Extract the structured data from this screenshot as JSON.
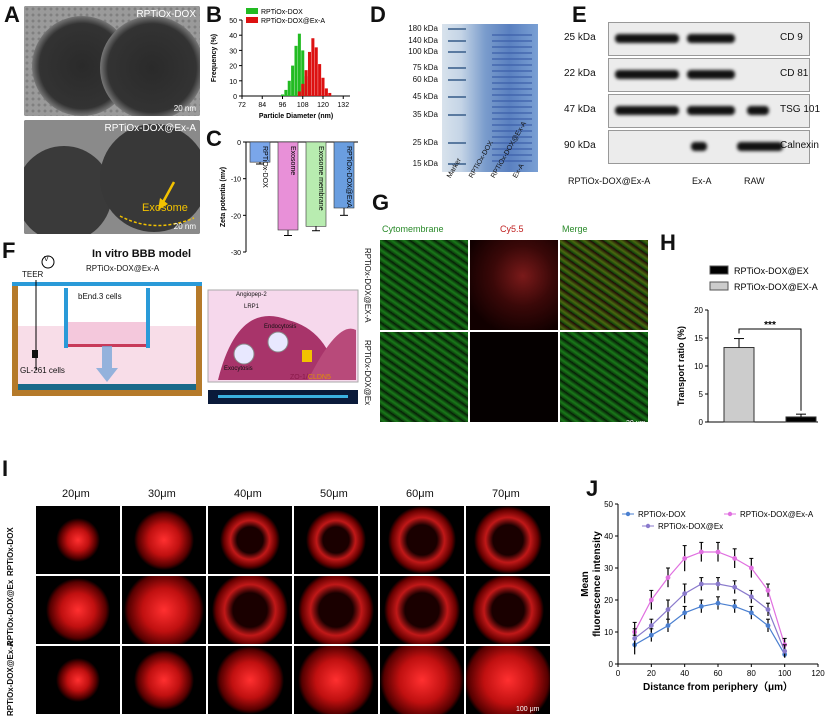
{
  "panels": {
    "A": {
      "letter": "A",
      "label_top": "RPTiOx-DOX",
      "label_bottom": "RPTiOx-DOX@Ex-A",
      "annotation": "Exosome",
      "scale_top": "20 nm",
      "scale_bottom": "20 nm"
    },
    "B": {
      "letter": "B"
    },
    "C": {
      "letter": "C"
    },
    "D": {
      "letter": "D",
      "mw_labels": [
        "180 kDa",
        "140 kDa",
        "100 kDa",
        "75 kDa",
        "60 kDa",
        "45 kDa",
        "35 kDa",
        "25 kDa",
        "15 kDa"
      ],
      "lanes": [
        "Marker",
        "RPTiOx-DOX",
        "RPTiOx-DOX@Ex-A",
        "Ex-A"
      ]
    },
    "E": {
      "letter": "E",
      "rows": [
        {
          "mw": "25 kDa",
          "protein": "CD 9"
        },
        {
          "mw": "22 kDa",
          "protein": "CD 81"
        },
        {
          "mw": "47 kDa",
          "protein": "TSG 101"
        },
        {
          "mw": "90 kDa",
          "protein": "Calnexin"
        }
      ],
      "lanes": [
        "RPTiOx-DOX@Ex-A",
        "Ex-A",
        "RAW"
      ]
    },
    "F": {
      "letter": "F",
      "title": "In vitro BBB model",
      "teer": "TEER",
      "v": "V",
      "sample": "RPTiOx-DOX@Ex-A",
      "bend": "bEnd.3 cells",
      "gl": "GL-261 cells",
      "angiopep": "Angiopep-2",
      "lrp1": "LRP1",
      "endocytosis": "Endocytosis",
      "exocytosis": "Exocytosis",
      "zo": "ZO-1/",
      "cldn": "CLDN5"
    },
    "G": {
      "letter": "G",
      "columns": [
        "Cytomembrane",
        "Cy5.5",
        "Merge"
      ],
      "rows": [
        "RPTiOx-DOX@EX-A",
        "RPTiOx-DOX@Ex"
      ],
      "scale": "20 μm"
    },
    "H": {
      "letter": "H",
      "significance": "***"
    },
    "I": {
      "letter": "I",
      "depths": [
        "20μm",
        "30μm",
        "40μm",
        "50μm",
        "60μm",
        "70μm"
      ],
      "rows": [
        "RPTiOx-DOX",
        "RPTiOx-DOX@Ex",
        "RPTiOx-DOX@Ex-A"
      ],
      "scale": "100 μm"
    },
    "J": {
      "letter": "J"
    }
  },
  "chart_data": [
    {
      "id": "B",
      "type": "bar",
      "xlabel": "Particle Diameter (nm)",
      "ylabel": "Frequency (%)",
      "xlim": [
        72,
        136
      ],
      "ylim": [
        0,
        50
      ],
      "xticks": [
        72,
        84,
        96,
        108,
        120,
        132
      ],
      "yticks": [
        0,
        10,
        20,
        30,
        40,
        50
      ],
      "legend": "top-left",
      "series": [
        {
          "name": "RPTiOx-DOX",
          "color": "#22bb22",
          "x": [
            96,
            98,
            100,
            102,
            104,
            106,
            108,
            110,
            112
          ],
          "values": [
            1,
            4,
            10,
            20,
            33,
            41,
            30,
            13,
            2
          ]
        },
        {
          "name": "RPTiOx-DOX@Ex-A",
          "color": "#dd1111",
          "x": [
            106,
            108,
            110,
            112,
            114,
            116,
            118,
            120,
            122,
            124
          ],
          "values": [
            3,
            8,
            17,
            29,
            38,
            32,
            21,
            12,
            5,
            2
          ]
        }
      ]
    },
    {
      "id": "C",
      "type": "bar",
      "ylabel": "Zeta potentia (mv)",
      "ylim": [
        -30,
        0
      ],
      "yticks": [
        -30,
        -20,
        -10,
        0
      ],
      "categories": [
        "RPTiOx-DOX",
        "Exosome",
        "Exosome membrane",
        "RPTiOx-DOX@ExA"
      ],
      "values": [
        -5.5,
        -24,
        -23,
        -18
      ],
      "errors": [
        0.5,
        1.5,
        1.2,
        2
      ],
      "colors": [
        "#7aa6ea",
        "#e890d8",
        "#b8ecb0",
        "#6a9ee0"
      ]
    },
    {
      "id": "H",
      "type": "bar",
      "ylabel": "Transport ratio (%)",
      "ylim": [
        0,
        20
      ],
      "yticks": [
        0,
        5,
        10,
        15,
        20
      ],
      "legend": "top-right",
      "categories": [
        "RPTiOx-DOX@EX-A",
        "RPTiOx-DOX@EX"
      ],
      "values": [
        13.3,
        0.9
      ],
      "errors": [
        1.6,
        0.5
      ],
      "colors": [
        "#cccccc",
        "#000000"
      ],
      "series_names": [
        "RPTiOx-DOX@EX",
        "RPTiOx-DOX@EX-A"
      ]
    },
    {
      "id": "J",
      "type": "line",
      "xlabel": "Distance from periphery（μm）",
      "ylabel": "Mean fluorescence intensity",
      "xlim": [
        0,
        120
      ],
      "ylim": [
        0,
        50
      ],
      "xticks": [
        0,
        20,
        40,
        60,
        80,
        100,
        120
      ],
      "yticks": [
        0,
        10,
        20,
        30,
        40,
        50
      ],
      "x": [
        10,
        20,
        30,
        40,
        50,
        60,
        70,
        80,
        90,
        100
      ],
      "series": [
        {
          "name": "RPTiOx-DOX",
          "color": "#4a7fd0",
          "values": [
            6,
            9,
            12,
            16,
            18,
            19,
            18,
            16,
            12,
            3
          ],
          "errors": [
            3,
            2,
            2,
            2,
            2,
            2,
            2,
            2,
            2,
            1
          ]
        },
        {
          "name": "RPTiOx-DOX@Ex-A",
          "color": "#e070e0",
          "values": [
            10,
            20,
            27,
            33,
            35,
            35,
            33,
            30,
            23,
            6
          ],
          "errors": [
            3,
            3,
            3,
            4,
            3,
            3,
            3,
            3,
            2,
            2
          ]
        },
        {
          "name": "RPTiOx-DOX@Ex",
          "color": "#8a7acc",
          "values": [
            8,
            12,
            17,
            22,
            25,
            25,
            24,
            21,
            17,
            4
          ],
          "errors": [
            3,
            2,
            3,
            3,
            2,
            2,
            2,
            2,
            2,
            2
          ]
        }
      ]
    }
  ]
}
